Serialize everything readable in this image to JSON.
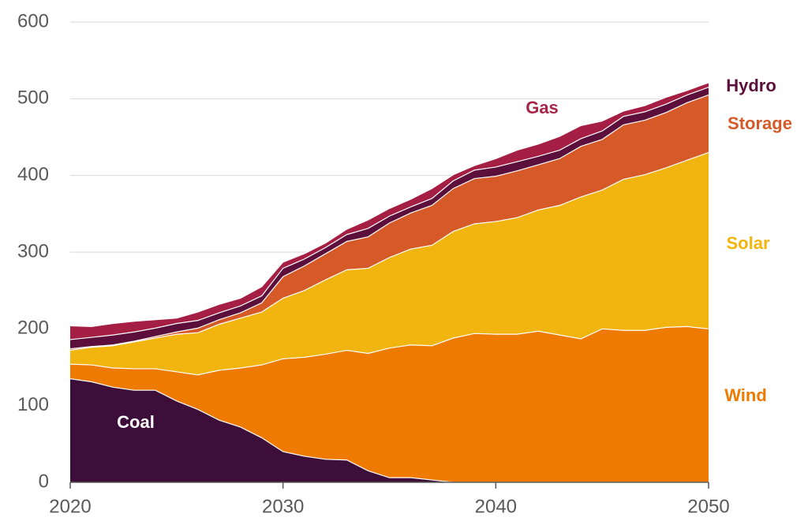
{
  "chart_data": {
    "type": "stacked-area",
    "x": [
      2020,
      2021,
      2022,
      2023,
      2024,
      2025,
      2026,
      2027,
      2028,
      2029,
      2030,
      2031,
      2032,
      2033,
      2034,
      2035,
      2036,
      2037,
      2038,
      2039,
      2040,
      2041,
      2042,
      2043,
      2044,
      2045,
      2046,
      2047,
      2048,
      2049,
      2050
    ],
    "xlim": [
      2020,
      2050
    ],
    "xticks": [
      2020,
      2030,
      2040,
      2050
    ],
    "ylim": [
      0,
      600
    ],
    "yticks": [
      0,
      100,
      200,
      300,
      400,
      500,
      600
    ],
    "grid": true,
    "series": [
      {
        "name": "Coal",
        "color": "#3d0e3a",
        "values": [
          135,
          131,
          124,
          120,
          120,
          106,
          95,
          81,
          72,
          58,
          40,
          34,
          30,
          29,
          15,
          6,
          6,
          3,
          0,
          0,
          0,
          0,
          0,
          0,
          0,
          0,
          0,
          0,
          0,
          0,
          0
        ]
      },
      {
        "name": "Wind",
        "color": "#ee7a00",
        "values": [
          19,
          22,
          25,
          28,
          28,
          38,
          45,
          65,
          77,
          95,
          121,
          129,
          137,
          143,
          153,
          169,
          173,
          175,
          188,
          194,
          193,
          193,
          197,
          192,
          187,
          200,
          198,
          198,
          202,
          203,
          200
        ]
      },
      {
        "name": "Solar",
        "color": "#f2b510",
        "values": [
          18,
          23,
          29,
          35,
          40,
          49,
          55,
          60,
          65,
          69,
          79,
          87,
          97,
          105,
          111,
          118,
          125,
          131,
          139,
          143,
          147,
          152,
          158,
          169,
          185,
          181,
          197,
          203,
          208,
          217,
          230
        ]
      },
      {
        "name": "Storage",
        "color": "#d65a28",
        "values": [
          2,
          1,
          1,
          1,
          2,
          3,
          6,
          6,
          7,
          12,
          28,
          32,
          34,
          37,
          41,
          45,
          47,
          52,
          56,
          59,
          59,
          61,
          59,
          61,
          66,
          66,
          71,
          71,
          72,
          75,
          75
        ]
      },
      {
        "name": "Hydro",
        "color": "#5c0f3a",
        "values": [
          12,
          12,
          13,
          12,
          11,
          11,
          10,
          9,
          9,
          9,
          11,
          9,
          8,
          9,
          11,
          9,
          8,
          9,
          10,
          11,
          12,
          12,
          11,
          11,
          10,
          11,
          11,
          11,
          11,
          10,
          10
        ]
      },
      {
        "name": "Gas",
        "color": "#a51f44",
        "values": [
          18,
          14,
          15,
          14,
          11,
          7,
          11,
          11,
          10,
          12,
          8,
          7,
          6,
          7,
          11,
          10,
          10,
          13,
          8,
          6,
          11,
          15,
          16,
          18,
          17,
          13,
          7,
          8,
          9,
          6,
          6
        ]
      }
    ]
  }
}
